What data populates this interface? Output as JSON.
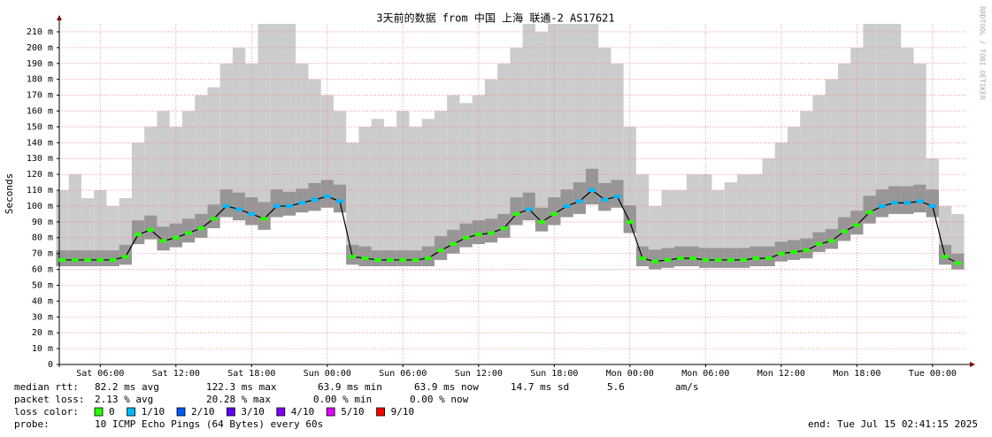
{
  "chart_data": {
    "type": "smokeping",
    "title": "3天前的数据 from 中国 上海 联通-2 AS17621",
    "y_label": "Seconds",
    "watermark": "RRDTOOL / TOBI OETIKER",
    "xlim": [
      "Sat 02:45",
      "Tue 02:45"
    ],
    "xticks": [
      "Sat 06:00",
      "Sat 12:00",
      "Sat 18:00",
      "Sun 00:00",
      "Sun 06:00",
      "Sun 12:00",
      "Sun 18:00",
      "Mon 00:00",
      "Mon 06:00",
      "Mon 12:00",
      "Mon 18:00",
      "Tue 00:00"
    ],
    "ylim": [
      0,
      215
    ],
    "yticks": [
      0,
      {
        "value": 10,
        "label": "10 m"
      },
      {
        "value": 20,
        "label": "20 m"
      },
      {
        "value": 30,
        "label": "30 m"
      },
      {
        "value": 40,
        "label": "40 m"
      },
      {
        "value": 50,
        "label": "50 m"
      },
      {
        "value": 60,
        "label": "60 m"
      },
      {
        "value": 70,
        "label": "70 m"
      },
      {
        "value": 80,
        "label": "80 m"
      },
      {
        "value": 90,
        "label": "90 m"
      },
      {
        "value": 100,
        "label": "100 m"
      },
      {
        "value": 110,
        "label": "110 m"
      },
      {
        "value": 120,
        "label": "120 m"
      },
      {
        "value": 130,
        "label": "130 m"
      },
      {
        "value": 140,
        "label": "140 m"
      },
      {
        "value": 150,
        "label": "150 m"
      },
      {
        "value": 160,
        "label": "160 m"
      },
      {
        "value": 170,
        "label": "170 m"
      },
      {
        "value": 180,
        "label": "180 m"
      },
      {
        "value": 190,
        "label": "190 m"
      },
      {
        "value": 200,
        "label": "200 m"
      },
      {
        "value": 210,
        "label": "210 m"
      }
    ],
    "grid": true,
    "x": [
      "Sat 03:00",
      "Sat 04:00",
      "Sat 05:00",
      "Sat 06:00",
      "Sat 07:00",
      "Sat 08:00",
      "Sat 09:00",
      "Sat 10:00",
      "Sat 11:00",
      "Sat 12:00",
      "Sat 13:00",
      "Sat 14:00",
      "Sat 15:00",
      "Sat 16:00",
      "Sat 17:00",
      "Sat 18:00",
      "Sat 19:00",
      "Sat 20:00",
      "Sat 21:00",
      "Sat 22:00",
      "Sat 23:00",
      "Sun 00:00",
      "Sun 01:00",
      "Sun 02:00",
      "Sun 03:00",
      "Sun 04:00",
      "Sun 05:00",
      "Sun 06:00",
      "Sun 07:00",
      "Sun 08:00",
      "Sun 09:00",
      "Sun 10:00",
      "Sun 11:00",
      "Sun 12:00",
      "Sun 13:00",
      "Sun 14:00",
      "Sun 15:00",
      "Sun 16:00",
      "Sun 17:00",
      "Sun 18:00",
      "Sun 19:00",
      "Sun 20:00",
      "Sun 21:00",
      "Sun 22:00",
      "Sun 23:00",
      "Mon 00:00",
      "Mon 01:00",
      "Mon 02:00",
      "Mon 03:00",
      "Mon 04:00",
      "Mon 05:00",
      "Mon 06:00",
      "Mon 07:00",
      "Mon 08:00",
      "Mon 09:00",
      "Mon 10:00",
      "Mon 11:00",
      "Mon 12:00",
      "Mon 13:00",
      "Mon 14:00",
      "Mon 15:00",
      "Mon 16:00",
      "Mon 17:00",
      "Mon 18:00",
      "Mon 19:00",
      "Mon 20:00",
      "Mon 21:00",
      "Mon 22:00",
      "Mon 23:00",
      "Tue 00:00",
      "Tue 01:00",
      "Tue 02:00"
    ],
    "smoke_upper": [
      110,
      120,
      105,
      110,
      100,
      105,
      140,
      150,
      160,
      150,
      160,
      170,
      175,
      190,
      200,
      190,
      215,
      215,
      215,
      190,
      180,
      170,
      160,
      140,
      150,
      155,
      150,
      160,
      150,
      155,
      160,
      170,
      165,
      170,
      180,
      190,
      200,
      215,
      210,
      215,
      215,
      215,
      215,
      200,
      190,
      150,
      120,
      100,
      110,
      110,
      120,
      120,
      110,
      115,
      120,
      120,
      130,
      140,
      150,
      160,
      170,
      180,
      190,
      200,
      215,
      215,
      215,
      200,
      190,
      130,
      100,
      95
    ],
    "smoke_lower": [
      62,
      62,
      62,
      62,
      62,
      63,
      76,
      79,
      72,
      74,
      77,
      80,
      86,
      93,
      91,
      88,
      85,
      93,
      94,
      96,
      97,
      99,
      96,
      63,
      62,
      62,
      62,
      62,
      62,
      62,
      66,
      70,
      74,
      76,
      77,
      80,
      88,
      91,
      84,
      88,
      93,
      95,
      101,
      97,
      99,
      83,
      62,
      60,
      61,
      62,
      62,
      61,
      61,
      61,
      61,
      62,
      62,
      65,
      66,
      67,
      71,
      73,
      78,
      82,
      89,
      93,
      95,
      95,
      96,
      93,
      63,
      60
    ],
    "series": [
      {
        "name": "median rtt:",
        "color": "#000000",
        "values": [
          66,
          66,
          66,
          66,
          66,
          68,
          82,
          85,
          78,
          80,
          83,
          86,
          92,
          100,
          98,
          95,
          92,
          100,
          100,
          102,
          104,
          106,
          103,
          68,
          67,
          66,
          66,
          66,
          66,
          67,
          72,
          76,
          80,
          82,
          83,
          86,
          95,
          98,
          90,
          95,
          100,
          103,
          110,
          104,
          106,
          90,
          67,
          65,
          66,
          67,
          67,
          66,
          66,
          66,
          66,
          67,
          67,
          70,
          71,
          72,
          76,
          78,
          84,
          88,
          96,
          100,
          102,
          102,
          103,
          100,
          68,
          64
        ],
        "loss": [
          0,
          0,
          0,
          0,
          0,
          0,
          0,
          0,
          0,
          0,
          0,
          0,
          0,
          1,
          1,
          1,
          0,
          1,
          1,
          1,
          1,
          1,
          1,
          0,
          0,
          0,
          0,
          0,
          0,
          0,
          0,
          0,
          0,
          0,
          0,
          0,
          0,
          1,
          0,
          0,
          1,
          1,
          1,
          1,
          1,
          0,
          0,
          0,
          0,
          0,
          0,
          0,
          0,
          0,
          0,
          0,
          0,
          0,
          0,
          0,
          0,
          0,
          0,
          0,
          0,
          1,
          1,
          1,
          1,
          1,
          0,
          0
        ]
      }
    ],
    "stats": [
      {
        "label": "median rtt:",
        "items": [
          "82.2 ms avg",
          "122.3 ms max",
          "63.9 ms min",
          "63.9 ms now",
          "14.7 ms sd",
          "5.6",
          "am/s"
        ]
      },
      {
        "label": "packet loss:",
        "items": [
          "2.13 % avg",
          "20.28 % max",
          "0.00 % min",
          "0.00 % now"
        ]
      }
    ],
    "loss_color_label": "loss color:",
    "loss_colors": [
      {
        "label": "0",
        "color": "#26ff00"
      },
      {
        "label": "1/10",
        "color": "#00b8ff"
      },
      {
        "label": "2/10",
        "color": "#0059ff"
      },
      {
        "label": "3/10",
        "color": "#5e00ff"
      },
      {
        "label": "4/10",
        "color": "#7e00ff"
      },
      {
        "label": "5/10",
        "color": "#dd00ff"
      },
      {
        "label": "9/10",
        "color": "#ff0000"
      }
    ],
    "probe_label": "probe:",
    "probe": "10 ICMP Echo Pings (64 Bytes) every 60s",
    "end": "end: Tue Jul 15 02:41:15 2025"
  }
}
